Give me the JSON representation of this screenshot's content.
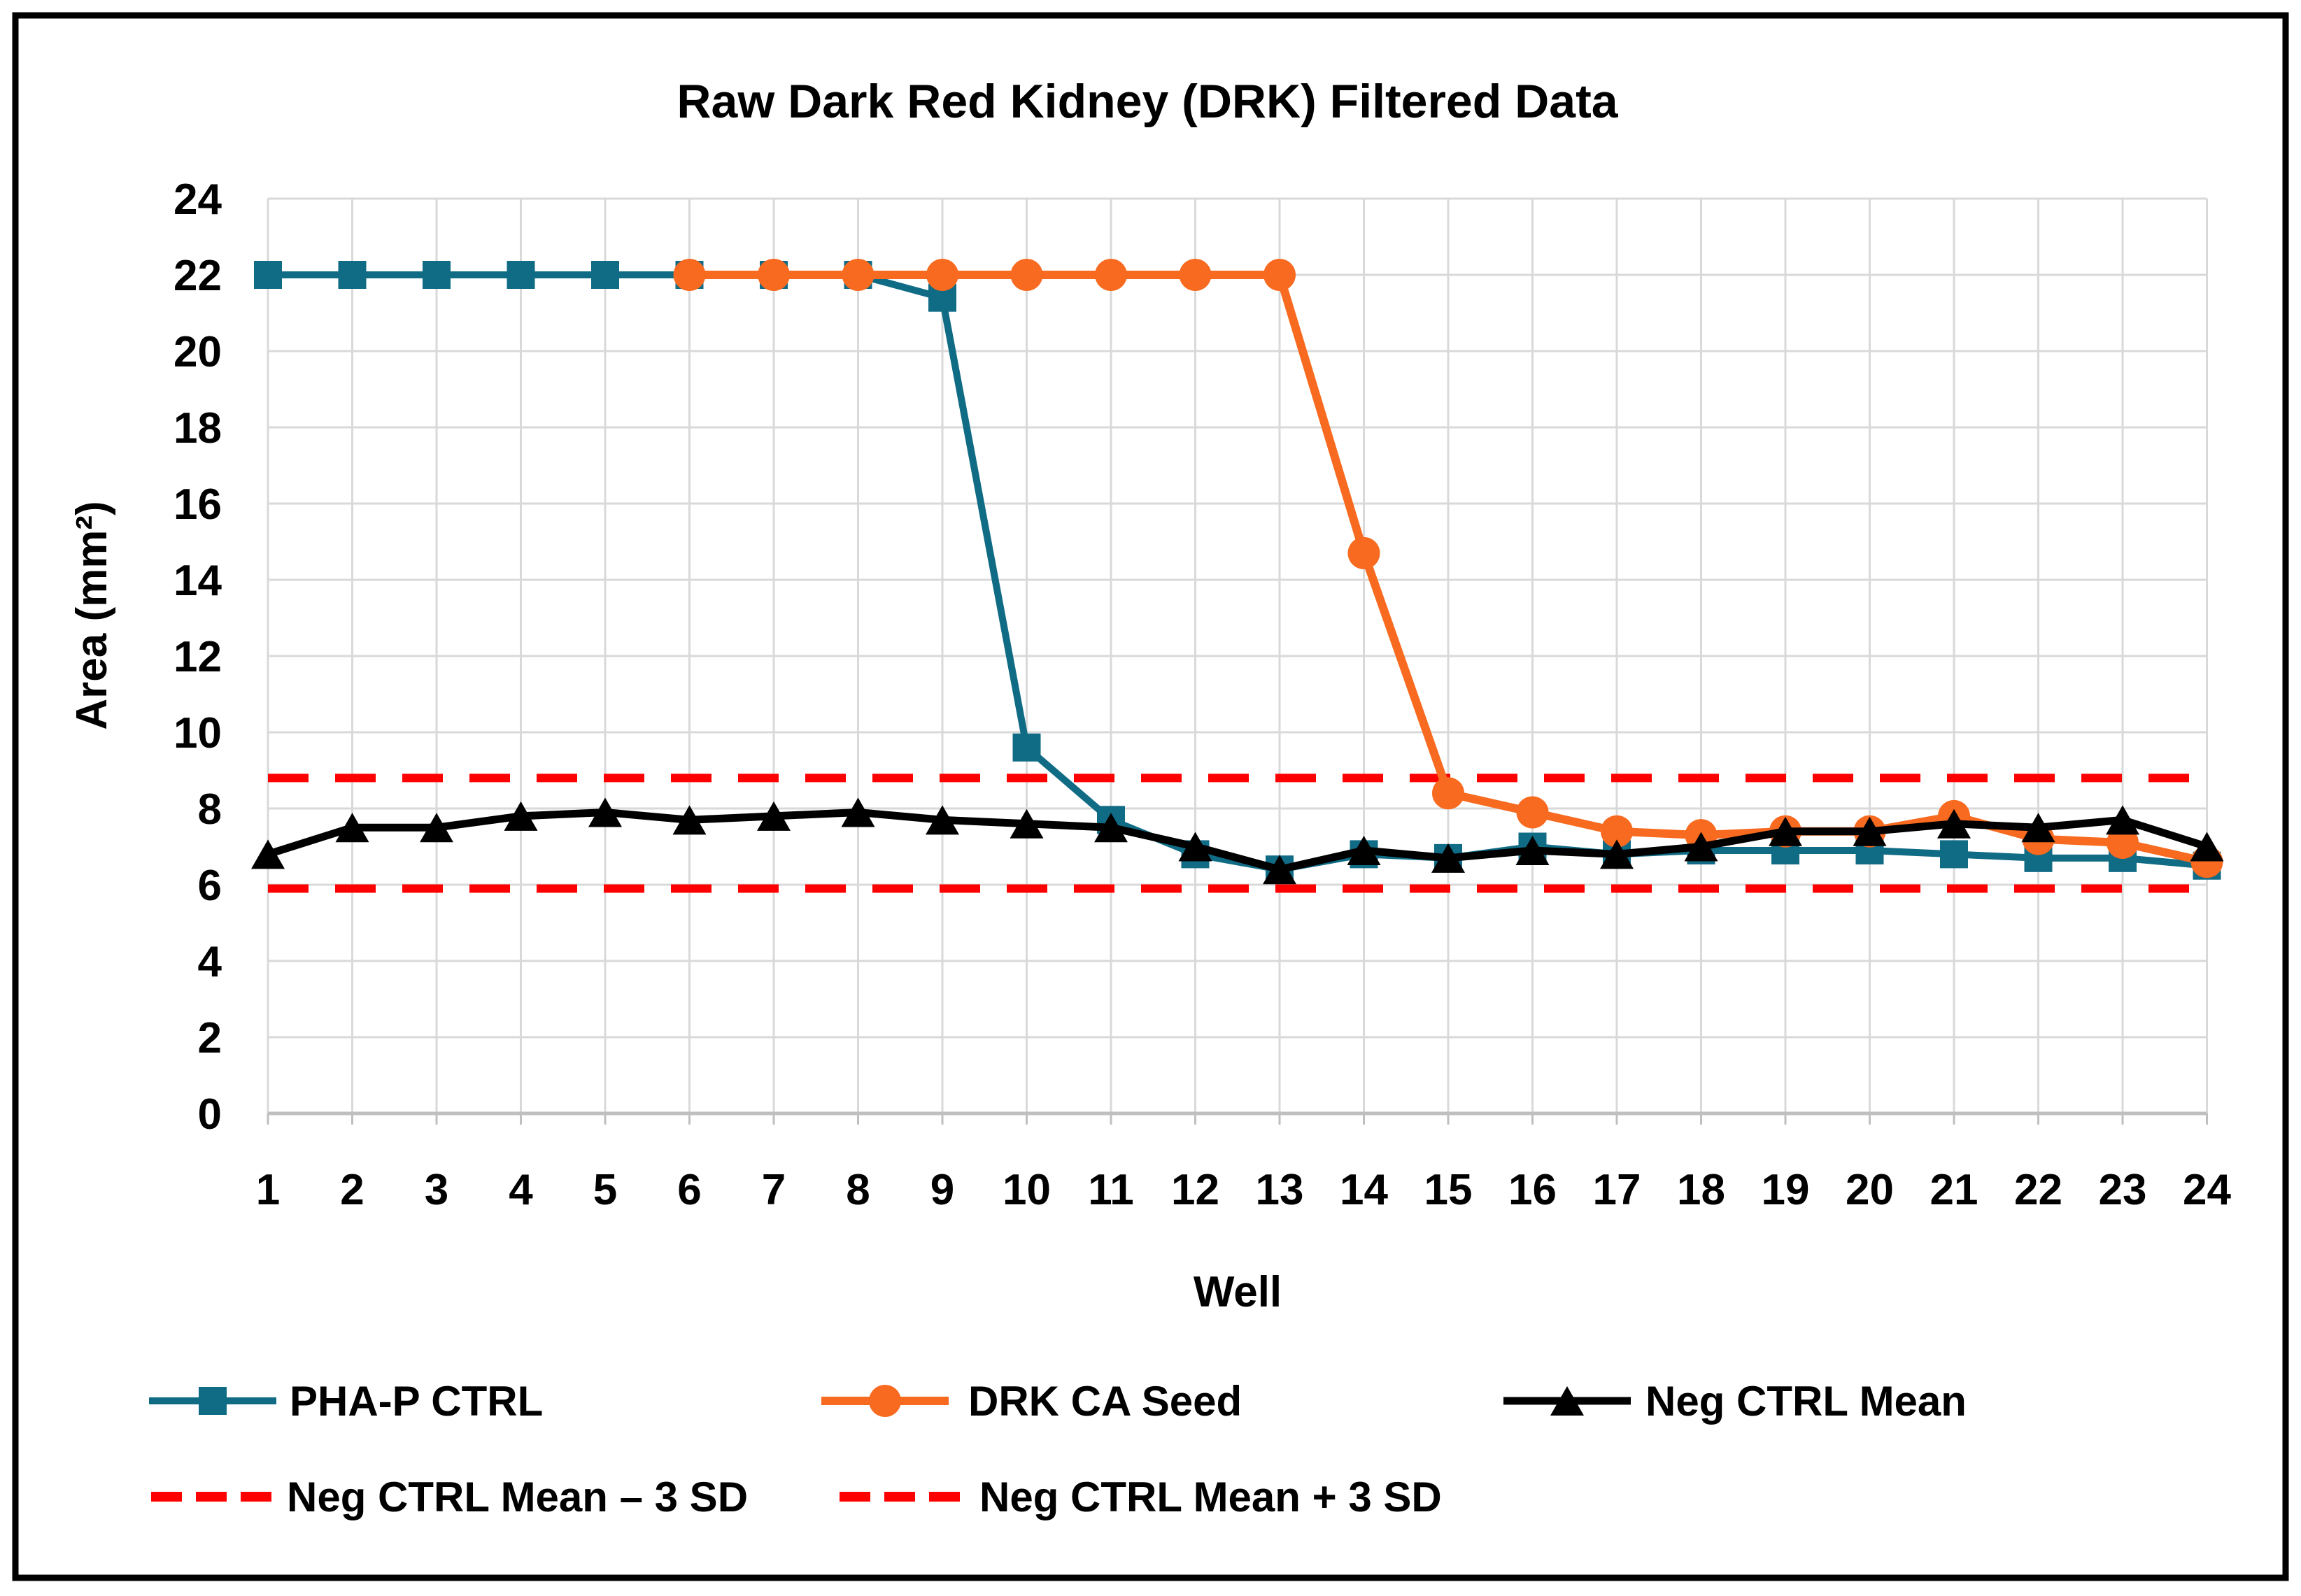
{
  "figure": {
    "background": "#ffffff",
    "border_color": "#000000",
    "grid_color": "#d9d9d9",
    "axis_color": "#bfbfbf",
    "text_color": "#000000"
  },
  "chart_data": {
    "type": "line",
    "title": "Raw Dark Red Kidney (DRK) Filtered Data",
    "xlabel": "Well",
    "ylabel": "Area (mm²)",
    "xlim": [
      1,
      24
    ],
    "ylim": [
      0,
      24
    ],
    "grid": true,
    "legend_position": "bottom",
    "xticks": [
      1,
      2,
      3,
      4,
      5,
      6,
      7,
      8,
      9,
      10,
      11,
      12,
      13,
      14,
      15,
      16,
      17,
      18,
      19,
      20,
      21,
      22,
      23,
      24
    ],
    "yticks": [
      0,
      2,
      4,
      6,
      8,
      10,
      12,
      14,
      16,
      18,
      20,
      22,
      24
    ],
    "series": [
      {
        "name": "PHA-P CTRL",
        "marker": "square",
        "color": "#106b85",
        "x": [
          1,
          2,
          3,
          4,
          5,
          6,
          7,
          8,
          9,
          10,
          11,
          12,
          13,
          14,
          15,
          16,
          17,
          18,
          19,
          20,
          21,
          22,
          23,
          24
        ],
        "values": [
          22,
          22,
          22,
          22,
          22,
          22,
          22,
          22,
          21.4,
          9.6,
          7.7,
          6.8,
          6.4,
          6.8,
          6.7,
          7.0,
          6.8,
          6.9,
          6.9,
          6.9,
          6.8,
          6.7,
          6.7,
          6.5
        ]
      },
      {
        "name": "DRK CA Seed",
        "marker": "circle",
        "color": "#f76a1f",
        "x": [
          6,
          7,
          8,
          9,
          10,
          11,
          12,
          13,
          14,
          15,
          16,
          17,
          18,
          19,
          20,
          21,
          22,
          23,
          24
        ],
        "values": [
          22,
          22,
          22,
          22,
          22,
          22,
          22,
          22,
          14.7,
          8.4,
          7.9,
          7.4,
          7.3,
          7.4,
          7.4,
          7.8,
          7.2,
          7.1,
          6.6
        ]
      },
      {
        "name": "Neg CTRL Mean",
        "marker": "triangle",
        "color": "#000000",
        "x": [
          1,
          2,
          3,
          4,
          5,
          6,
          7,
          8,
          9,
          10,
          11,
          12,
          13,
          14,
          15,
          16,
          17,
          18,
          19,
          20,
          21,
          22,
          23,
          24
        ],
        "values": [
          6.8,
          7.5,
          7.5,
          7.8,
          7.9,
          7.7,
          7.8,
          7.9,
          7.7,
          7.6,
          7.5,
          7.0,
          6.4,
          6.9,
          6.7,
          6.9,
          6.8,
          7.0,
          7.4,
          7.4,
          7.6,
          7.5,
          7.7,
          7.0
        ]
      }
    ],
    "ref_lines": [
      {
        "name": "Neg CTRL Mean – 3 SD",
        "value": 5.9,
        "color": "#ff0000",
        "style": "dashed"
      },
      {
        "name": "Neg CTRL Mean + 3 SD",
        "value": 8.8,
        "color": "#ff0000",
        "style": "dashed"
      }
    ]
  }
}
